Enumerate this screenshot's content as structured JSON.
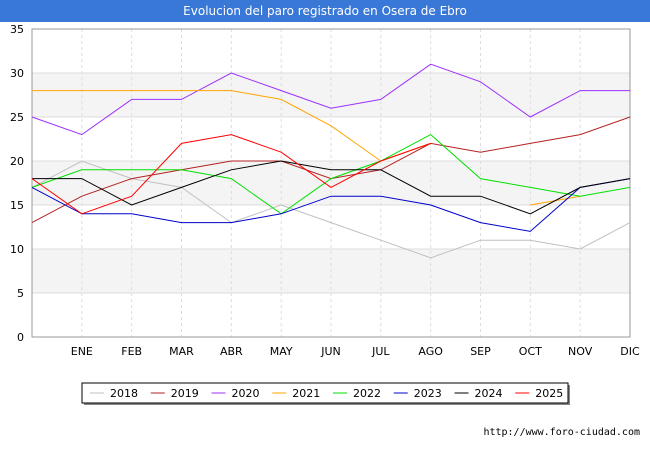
{
  "chart_data": {
    "type": "line",
    "title": "Evolucion del paro registrado en Osera de Ebro",
    "xlabel": "",
    "ylabel": "",
    "ylim": [
      0,
      35
    ],
    "yticks": [
      0,
      5,
      10,
      15,
      20,
      25,
      30,
      35
    ],
    "categories": [
      "",
      "ENE",
      "FEB",
      "MAR",
      "ABR",
      "MAY",
      "JUN",
      "JUL",
      "AGO",
      "SEP",
      "OCT",
      "NOV",
      "DIC"
    ],
    "grid": true,
    "legend_position": "bottom",
    "series": [
      {
        "name": "2018",
        "color": "#c0c0c0",
        "values": [
          17,
          20,
          18,
          17,
          13,
          15,
          13,
          11,
          9,
          11,
          11,
          10,
          13
        ]
      },
      {
        "name": "2019",
        "color": "#b22222",
        "values": [
          13,
          16,
          18,
          19,
          20,
          20,
          18,
          19,
          22,
          21,
          22,
          23,
          25
        ]
      },
      {
        "name": "2020",
        "color": "#9b30ff",
        "values": [
          25,
          23,
          27,
          27,
          30,
          28,
          26,
          27,
          31,
          29,
          25,
          28,
          28
        ]
      },
      {
        "name": "2021",
        "color": "#ffa500",
        "values": [
          28,
          28,
          28,
          28,
          28,
          27,
          24,
          20,
          22,
          null,
          15,
          16,
          null
        ]
      },
      {
        "name": "2022",
        "color": "#00e000",
        "values": [
          17,
          19,
          19,
          19,
          18,
          14,
          18,
          20,
          23,
          18,
          17,
          16,
          17
        ]
      },
      {
        "name": "2023",
        "color": "#0000cc",
        "values": [
          17,
          14,
          14,
          13,
          13,
          14,
          16,
          16,
          15,
          13,
          12,
          17,
          18
        ]
      },
      {
        "name": "2024",
        "color": "#000000",
        "values": [
          18,
          18,
          15,
          17,
          19,
          20,
          19,
          19,
          16,
          16,
          14,
          17,
          18
        ]
      },
      {
        "name": "2025",
        "color": "#ff0000",
        "values": [
          18,
          14,
          16,
          22,
          23,
          21,
          17,
          20,
          22,
          null,
          null,
          null,
          null
        ]
      }
    ]
  },
  "footer": {
    "source": "http://www.foro-ciudad.com"
  }
}
